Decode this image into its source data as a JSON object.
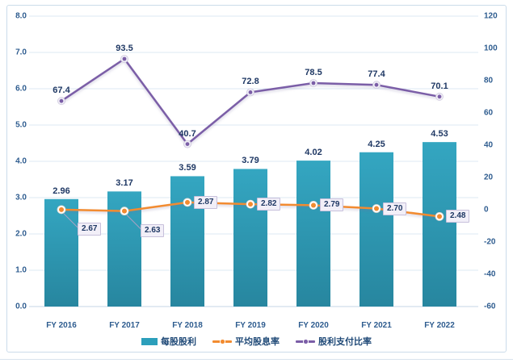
{
  "chart_data": {
    "type": "bar",
    "subtype": "combo-bar-line",
    "categories": [
      "FY 2016",
      "FY 2017",
      "FY 2018",
      "FY 2019",
      "FY 2020",
      "FY 2021",
      "FY 2022"
    ],
    "series": [
      {
        "name": "每股股利",
        "type": "bar",
        "axis": "left",
        "values": [
          2.96,
          3.17,
          3.59,
          3.79,
          4.02,
          4.25,
          4.53
        ],
        "labels": [
          "2.96",
          "3.17",
          "3.59",
          "3.79",
          "4.02",
          "4.25",
          "4.53"
        ],
        "color": "#2C9FBB",
        "color_top": "#34A6C1",
        "color_bottom": "#27869F"
      },
      {
        "name": "平均股息率",
        "type": "line",
        "axis": "left",
        "label_style": "boxed",
        "values": [
          2.67,
          2.63,
          2.87,
          2.82,
          2.79,
          2.7,
          2.48
        ],
        "labels": [
          "2.67",
          "2.63",
          "2.87",
          "2.82",
          "2.79",
          "2.70",
          "2.48"
        ],
        "color": "#F28B30"
      },
      {
        "name": "股利支付比率",
        "type": "line",
        "axis": "right",
        "label_style": "plain",
        "values": [
          67.4,
          93.5,
          40.7,
          72.8,
          78.5,
          77.4,
          70.1
        ],
        "labels": [
          "67.4",
          "93.5",
          "40.7",
          "72.8",
          "78.5",
          "77.4",
          "70.1"
        ],
        "color": "#7B5EA7"
      }
    ],
    "left_axis": {
      "min": 0,
      "max": 8,
      "step": 1,
      "labels": [
        "8.0",
        "7.0",
        "6.0",
        "5.0",
        "4.0",
        "3.0",
        "2.0",
        "1.0",
        "0.0"
      ]
    },
    "right_axis": {
      "min": -60,
      "max": 120,
      "step": 20,
      "labels": [
        "120",
        "100",
        "80",
        "60",
        "40",
        "20",
        "0",
        "-20",
        "-40",
        "-60"
      ]
    },
    "grid": true,
    "legend_position": "bottom",
    "title": ""
  },
  "colors": {
    "bar_teal": "#2C9FBB",
    "line_orange": "#F28B30",
    "line_purple": "#7B5EA7",
    "data_label_text": "#1F3864",
    "axis_text": "#2E5C8F",
    "gridline": "#DCE8F3",
    "axis_line": "#C4D4E4",
    "frame_border": "#CBDCEA",
    "callout_box_bg": "#F2EFF8",
    "callout_box_border": "#C7C0DB"
  }
}
